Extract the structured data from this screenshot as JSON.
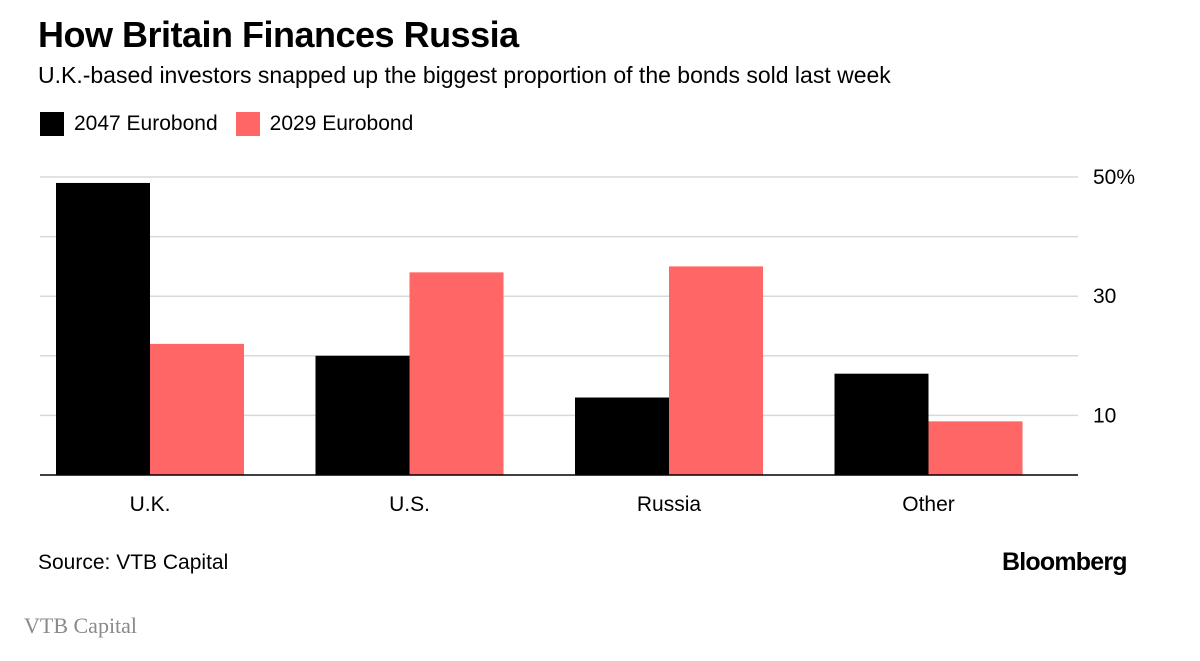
{
  "chart_data": {
    "type": "bar",
    "title": "How Britain Finances Russia",
    "subtitle": "U.K.-based investors snapped up the biggest proportion of the bonds sold last week",
    "categories": [
      "U.K.",
      "U.S.",
      "Russia",
      "Other"
    ],
    "series": [
      {
        "name": "2047 Eurobond",
        "color": "#000000",
        "values": [
          49,
          20,
          13,
          17
        ]
      },
      {
        "name": "2029 Eurobond",
        "color": "#ff6666",
        "values": [
          22,
          34,
          35,
          9
        ]
      }
    ],
    "ylim": [
      0,
      50
    ],
    "yticks": [
      0,
      10,
      20,
      30,
      40,
      50
    ],
    "ytick_labels": [
      "",
      "10",
      "",
      "30",
      "",
      "50%"
    ],
    "xlabel": "",
    "ylabel": "",
    "grid": true,
    "legend_position": "top-left",
    "source": "Source: VTB Capital",
    "brand": "Bloomberg"
  },
  "caption": "VTB Capital"
}
